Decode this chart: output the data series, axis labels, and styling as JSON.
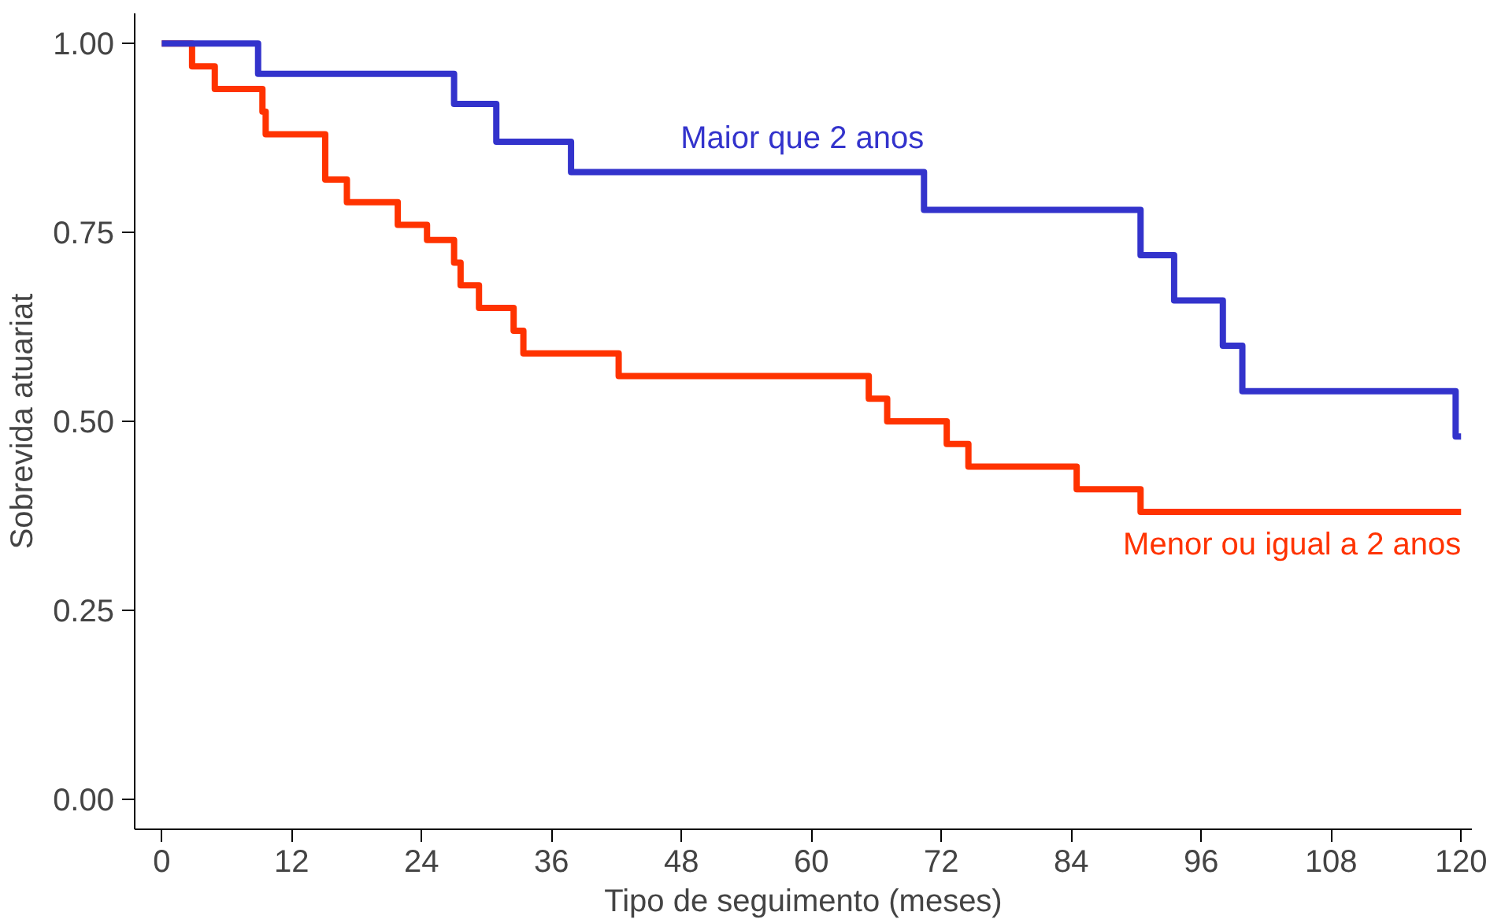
{
  "chart_data": {
    "type": "step",
    "xlabel": "Tipo de seguimento (meses)",
    "ylabel": "Sobrevida atuariat",
    "xlim": [
      -2.5,
      121
    ],
    "ylim": [
      -0.04,
      1.04
    ],
    "xticks": [
      0,
      12,
      24,
      36,
      48,
      60,
      72,
      84,
      96,
      108,
      120
    ],
    "yticks": [
      {
        "value": 0,
        "label": "0.00"
      },
      {
        "value": 0.25,
        "label": "0.25"
      },
      {
        "value": 0.5,
        "label": "0.50"
      },
      {
        "value": 0.75,
        "label": "0.75"
      },
      {
        "value": 1,
        "label": "1.00"
      }
    ],
    "grid": false,
    "series": [
      {
        "name": "Maior que 2 anos",
        "color": "#3333cc",
        "x": [
          0,
          8.9,
          27,
          30.9,
          37.8,
          70.4,
          90.4,
          93.5,
          98,
          99.8,
          119.5,
          120
        ],
        "values": [
          1.0,
          0.96,
          0.92,
          0.87,
          0.83,
          0.78,
          0.72,
          0.66,
          0.6,
          0.54,
          0.48,
          0.48
        ]
      },
      {
        "name": "Menor ou igual a 2 anos",
        "color": "#ff3300",
        "x": [
          0,
          2.8,
          4.9,
          9.3,
          9.6,
          15.1,
          17.1,
          21.8,
          24.5,
          27,
          27.6,
          29.3,
          32.5,
          33.4,
          42.2,
          65.3,
          67,
          72.5,
          74.5,
          84.5,
          90.4,
          120
        ],
        "values": [
          1.0,
          0.97,
          0.94,
          0.91,
          0.88,
          0.82,
          0.79,
          0.76,
          0.74,
          0.71,
          0.68,
          0.65,
          0.62,
          0.59,
          0.56,
          0.53,
          0.5,
          0.47,
          0.44,
          0.41,
          0.38,
          0.38
        ]
      }
    ]
  }
}
